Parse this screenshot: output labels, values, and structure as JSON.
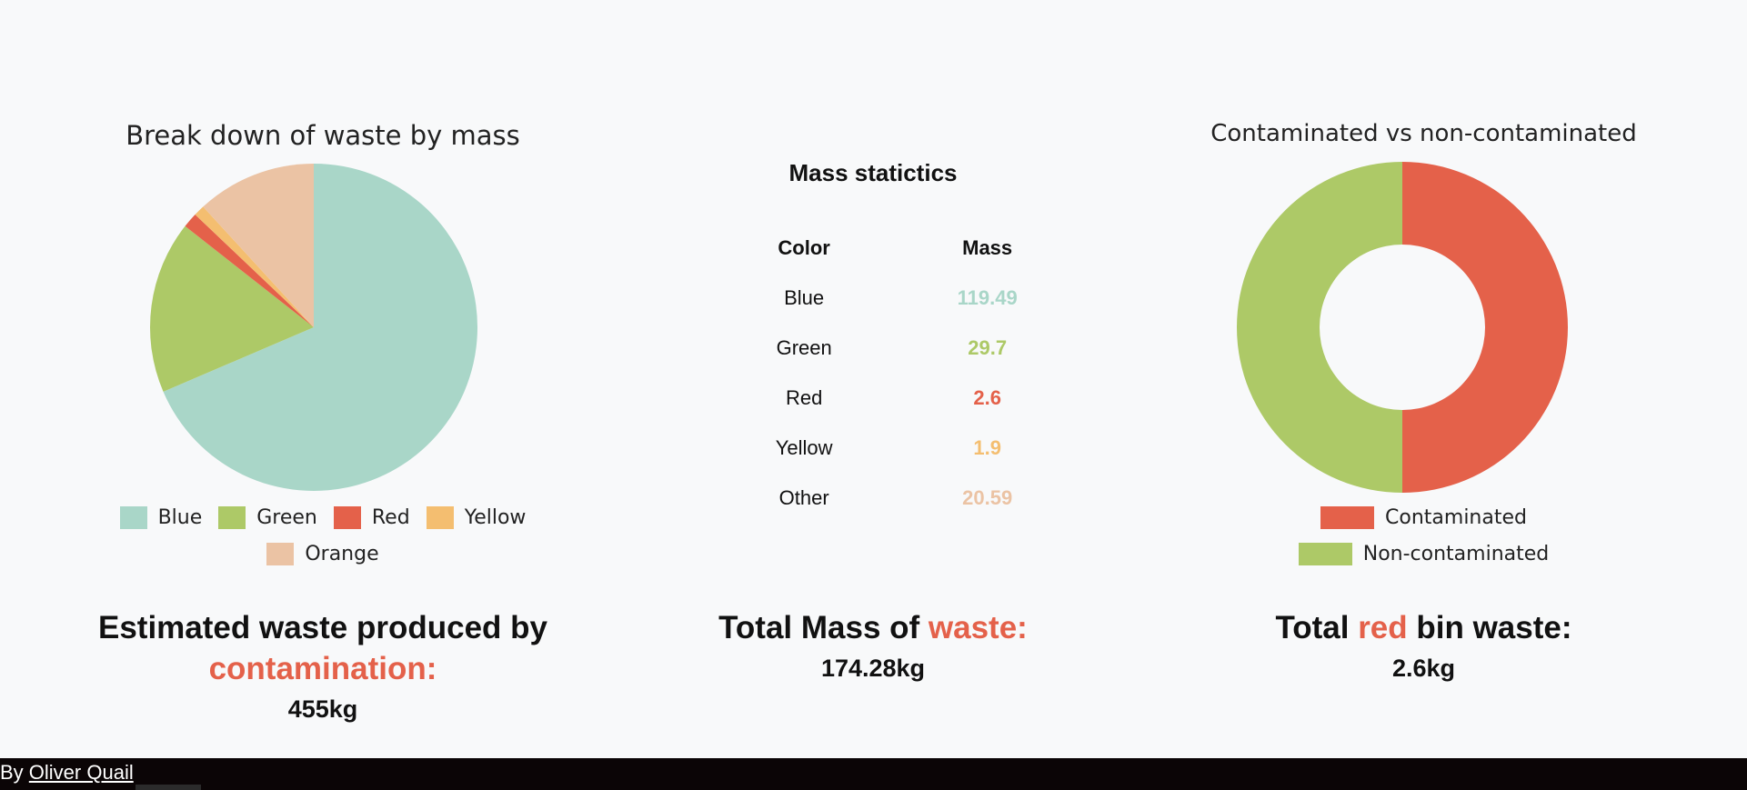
{
  "colors": {
    "blue": "#a9d6c8",
    "green": "#adc967",
    "red": "#e4614a",
    "yellow": "#f4be70",
    "orange": "#ebc3a4"
  },
  "pie": {
    "title": "Break down of waste by mass",
    "legend": [
      "Blue",
      "Green",
      "Red",
      "Yellow",
      "Orange"
    ]
  },
  "donut": {
    "title": "Contaminated vs non-contaminated",
    "legend": [
      "Contaminated",
      "Non-contaminated"
    ]
  },
  "chart_data": [
    {
      "type": "pie",
      "title": "Break down of waste by mass",
      "categories": [
        "Blue",
        "Green",
        "Red",
        "Yellow",
        "Orange"
      ],
      "values": [
        119.49,
        29.7,
        2.6,
        1.9,
        20.59
      ],
      "colors": [
        "#a9d6c8",
        "#adc967",
        "#e4614a",
        "#f4be70",
        "#ebc3a4"
      ],
      "legend": "bottom"
    },
    {
      "type": "pie",
      "title": "Contaminated vs non-contaminated",
      "categories": [
        "Contaminated",
        "Non-contaminated"
      ],
      "values": [
        50,
        50
      ],
      "colors": [
        "#e4614a",
        "#adc967"
      ],
      "donut": true,
      "legend": "bottom"
    }
  ],
  "stats": {
    "title": "Mass statictics",
    "headers": [
      "Color",
      "Mass"
    ],
    "rows": [
      {
        "color": "Blue",
        "mass": "119.49"
      },
      {
        "color": "Green",
        "mass": "29.7"
      },
      {
        "color": "Red",
        "mass": "2.6"
      },
      {
        "color": "Yellow",
        "mass": "1.9"
      },
      {
        "color": "Other",
        "mass": "20.59"
      }
    ]
  },
  "summary": {
    "left": {
      "prefix": "Estimated waste produced by",
      "highlight": "contamination:",
      "value": "455kg"
    },
    "mid": {
      "prefix": "Total Mass of ",
      "highlight": "waste:",
      "value": "174.28kg"
    },
    "right": {
      "prefix": "Total ",
      "highlight": "red",
      "suffix": " bin waste:",
      "value": "2.6kg"
    }
  },
  "footer": {
    "by": "By ",
    "author": "Oliver Quail"
  }
}
